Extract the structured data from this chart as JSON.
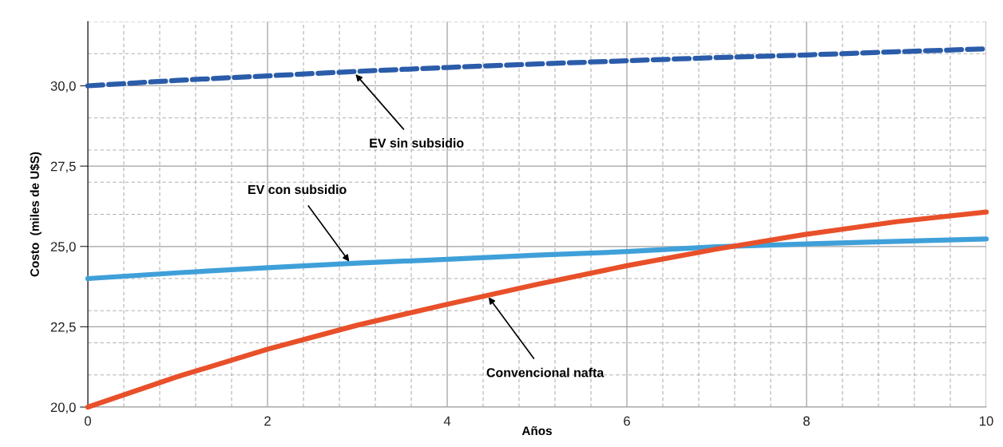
{
  "chart_data": {
    "type": "line",
    "xlabel": "Años",
    "ylabel": "Costo  (miles de U$S)",
    "x": [
      0,
      1,
      2,
      3,
      4,
      5,
      6,
      7,
      8,
      9,
      10
    ],
    "series": [
      {
        "color": "#2a5caa",
        "line_style": "dashed",
        "values": [
          30.0,
          30.17,
          30.31,
          30.45,
          30.57,
          30.68,
          30.78,
          30.88,
          30.96,
          31.06,
          31.15
        ]
      },
      {
        "color": "#3fa0d9",
        "line_style": "solid",
        "values": [
          24.0,
          24.18,
          24.34,
          24.48,
          24.6,
          24.73,
          24.84,
          24.99,
          25.08,
          25.16,
          25.23
        ]
      },
      {
        "color": "#e8502a",
        "line_style": "solid",
        "values": [
          20.0,
          20.95,
          21.8,
          22.55,
          23.2,
          23.82,
          24.4,
          24.92,
          25.38,
          25.77,
          26.07
        ]
      }
    ],
    "annotations": [
      {
        "text": "EV sin subsidio",
        "x": 2.98,
        "y": 30.36
      },
      {
        "text": "EV con subsidio",
        "x": 2.91,
        "y": 24.53
      },
      {
        "text": "Convencional nafta",
        "x": 4.46,
        "y": 23.42
      }
    ],
    "xlim": [
      0,
      10
    ],
    "xticks": [
      0,
      2,
      4,
      6,
      8,
      10
    ],
    "ylim": [
      20,
      32
    ],
    "yticks": [
      {
        "value": 20,
        "label": "20,0"
      },
      {
        "value": 22.5,
        "label": "22,5"
      },
      {
        "value": 25,
        "label": "25,0"
      },
      {
        "value": 27.5,
        "label": "27,5"
      },
      {
        "value": 30,
        "label": "30,0"
      }
    ],
    "grid": true,
    "legend": false,
    "marker": "none"
  }
}
